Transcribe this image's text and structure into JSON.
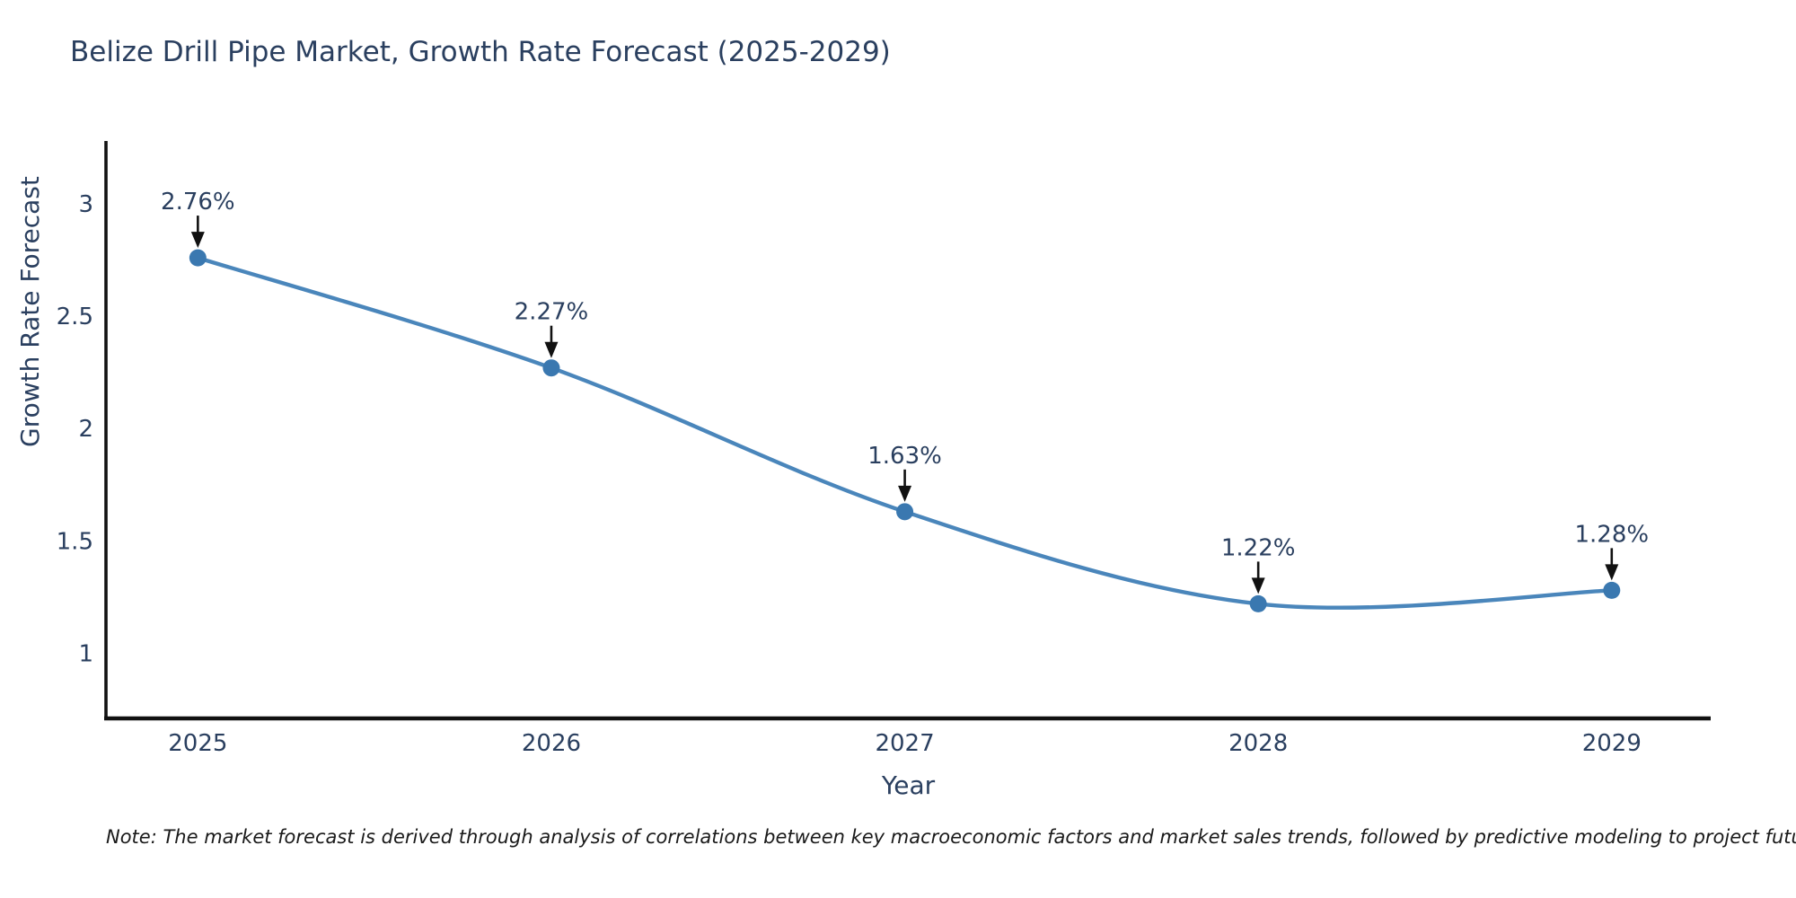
{
  "chart_data": {
    "type": "line",
    "title": "Belize Drill Pipe Market, Growth Rate Forecast (2025-2029)",
    "xlabel": "Year",
    "ylabel": "Growth Rate Forecast",
    "x": [
      2025,
      2026,
      2027,
      2028,
      2029
    ],
    "series": [
      {
        "name": "Growth Rate Forecast",
        "values": [
          2.76,
          2.27,
          1.63,
          1.22,
          1.28
        ],
        "point_labels": [
          "2.76%",
          "2.27%",
          "1.63%",
          "1.22%",
          "1.28%"
        ]
      }
    ],
    "xticks": [
      "2025",
      "2026",
      "2027",
      "2028",
      "2029"
    ],
    "yticks": [
      "1",
      "1.5",
      "2",
      "2.5",
      "3"
    ],
    "ytick_values": [
      1,
      1.5,
      2,
      2.5,
      3
    ],
    "xtick_values": [
      2025,
      2026,
      2027,
      2028,
      2029
    ],
    "xlim": [
      2024.74,
      2029.28
    ],
    "ylim": [
      0.71,
      3.28
    ],
    "grid": false,
    "legend_position": "none",
    "line_shape": "spline",
    "colors": {
      "line": "#4a86bb",
      "marker": "#3a78b0",
      "axis": "#111111",
      "tick_text": "#2a3f5f",
      "annotation_text": "#2a3f5f",
      "arrow": "#111111",
      "background": "#ffffff",
      "note_text": "#1a1a1a"
    },
    "note": "Note: The market forecast is derived through analysis of correlations between key macroeconomic factors and market sales trends, followed by predictive modeling to project future sales"
  }
}
